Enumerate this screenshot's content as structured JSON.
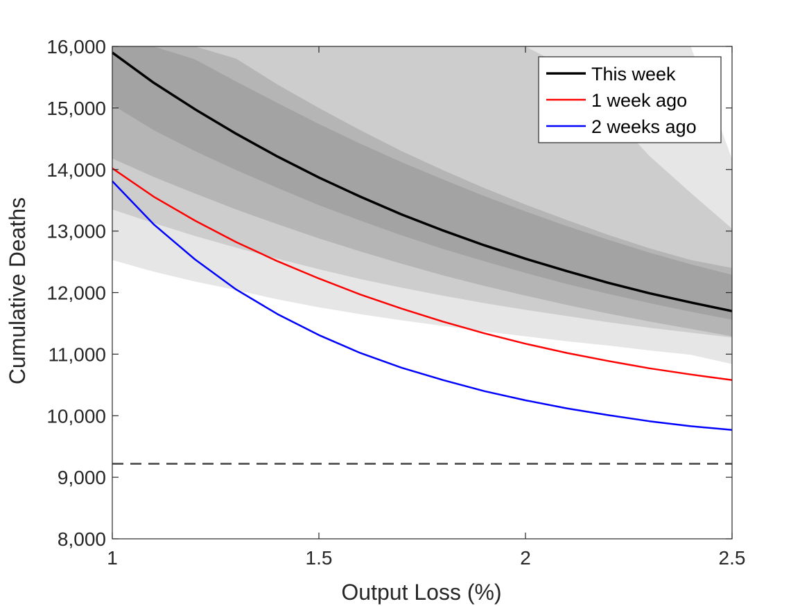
{
  "chart_data": {
    "type": "line",
    "title": "",
    "xlabel": "Output Loss (%)",
    "ylabel": "Cumulative Deaths",
    "xlim": [
      1,
      2.5
    ],
    "ylim": [
      8000,
      16000
    ],
    "xticks": [
      {
        "value": 1,
        "label": "1"
      },
      {
        "value": 1.5,
        "label": "1.5"
      },
      {
        "value": 2,
        "label": "2"
      },
      {
        "value": 2.5,
        "label": "2.5"
      }
    ],
    "yticks": [
      {
        "value": 8000,
        "label": "8,000"
      },
      {
        "value": 9000,
        "label": "9,000"
      },
      {
        "value": 10000,
        "label": "10,000"
      },
      {
        "value": 11000,
        "label": "11,000"
      },
      {
        "value": 12000,
        "label": "12,000"
      },
      {
        "value": 13000,
        "label": "13,000"
      },
      {
        "value": 14000,
        "label": "14,000"
      },
      {
        "value": 15000,
        "label": "15,000"
      },
      {
        "value": 16000,
        "label": "16,000"
      }
    ],
    "grid": false,
    "legend_position": "top-right",
    "x": [
      1.0,
      1.1,
      1.2,
      1.3,
      1.4,
      1.5,
      1.6,
      1.7,
      1.8,
      1.9,
      2.0,
      2.1,
      2.2,
      2.3,
      2.4,
      2.5
    ],
    "bands": [
      {
        "color": "#e6e6e6",
        "lower": [
          12530,
          12340,
          12180,
          12040,
          11890,
          11760,
          11650,
          11550,
          11460,
          11370,
          11290,
          11210,
          11140,
          11060,
          10990,
          10840
        ],
        "upper": [
          16000,
          16000,
          16000,
          16000,
          16000,
          16000,
          16000,
          16000,
          16000,
          16000,
          16000,
          16000,
          16000,
          16000,
          16000,
          14170
        ]
      },
      {
        "color": "#cdcdcd",
        "lower": [
          13350,
          13130,
          12920,
          12730,
          12550,
          12380,
          12220,
          12080,
          11950,
          11830,
          11720,
          11620,
          11520,
          11430,
          11350,
          11270
        ],
        "upper": [
          16000,
          16000,
          16000,
          16000,
          16000,
          16000,
          16000,
          16000,
          16000,
          16000,
          16000,
          15650,
          14950,
          14220,
          13620,
          13040
        ]
      },
      {
        "color": "#b5b5b5",
        "lower": [
          14180,
          13880,
          13610,
          13350,
          13110,
          12880,
          12670,
          12470,
          12280,
          12110,
          11950,
          11800,
          11660,
          11530,
          11410,
          11290
        ],
        "upper": [
          16000,
          16000,
          16000,
          15800,
          15380,
          15000,
          14640,
          14300,
          13990,
          13700,
          13430,
          13180,
          12940,
          12720,
          12530,
          12400
        ]
      },
      {
        "color": "#a3a3a3",
        "lower": [
          15050,
          14640,
          14300,
          13990,
          13700,
          13420,
          13170,
          12930,
          12710,
          12510,
          12320,
          12140,
          11980,
          11830,
          11690,
          11560
        ],
        "upper": [
          16000,
          16000,
          15790,
          15430,
          15080,
          14740,
          14420,
          14120,
          13840,
          13570,
          13320,
          13080,
          12860,
          12650,
          12460,
          12290
        ]
      }
    ],
    "series": [
      {
        "name": "This week",
        "color": "#000000",
        "values": [
          15900,
          15410,
          14980,
          14580,
          14210,
          13870,
          13560,
          13270,
          13010,
          12770,
          12550,
          12350,
          12160,
          11990,
          11840,
          11700
        ]
      },
      {
        "name": "1 week ago",
        "color": "#ff0000",
        "values": [
          14020,
          13560,
          13170,
          12820,
          12510,
          12230,
          11970,
          11740,
          11530,
          11340,
          11170,
          11020,
          10890,
          10770,
          10670,
          10580
        ]
      },
      {
        "name": "2 weeks ago",
        "color": "#0000ff",
        "values": [
          13810,
          13110,
          12540,
          12050,
          11650,
          11310,
          11020,
          10780,
          10580,
          10400,
          10250,
          10120,
          10010,
          9910,
          9830,
          9770
        ]
      }
    ],
    "reference_line": {
      "value": 9220,
      "style": "dashed",
      "color": "#404040"
    }
  }
}
